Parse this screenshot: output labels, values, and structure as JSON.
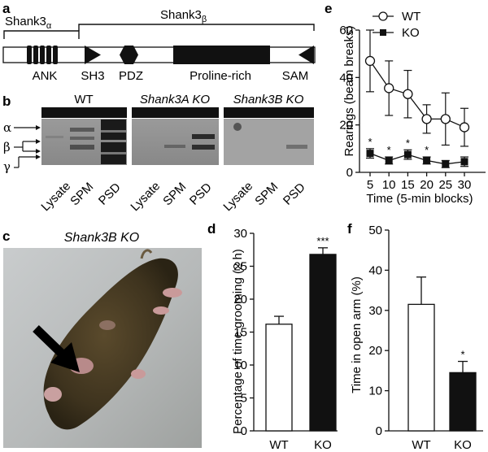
{
  "panel_labels": {
    "a": "a",
    "b": "b",
    "c": "c",
    "d": "d",
    "e": "e",
    "f": "f"
  },
  "panel_a": {
    "alpha_label": "Shank3",
    "alpha_sub": "α",
    "beta_label": "Shank3",
    "beta_sub": "β",
    "domains": [
      "ANK",
      "SH3",
      "PDZ",
      "Proline-rich",
      "SAM"
    ]
  },
  "panel_b": {
    "headers": [
      "WT",
      "Shank3A KO",
      "Shank3B KO"
    ],
    "isoforms": [
      "α",
      "β",
      "γ"
    ],
    "lanes": [
      "Lysate",
      "SPM",
      "PSD",
      "Lysate",
      "SPM",
      "PSD",
      "Lysate",
      "SPM",
      "PSD"
    ]
  },
  "panel_c": {
    "title": "Shank3B KO"
  },
  "colors": {
    "wt_fill": "#ffffff",
    "ko_fill": "#111111",
    "blot_bg": "#8c8c8c"
  },
  "chart_data": [
    {
      "id": "d",
      "type": "bar",
      "categories": [
        "WT",
        "KO"
      ],
      "values": [
        16.2,
        26.8
      ],
      "errors": [
        1.2,
        1.0
      ],
      "significance": [
        "",
        "***"
      ],
      "ylabel": "Percentage of time grooming (2 h)",
      "ylim": [
        0,
        30
      ],
      "yticks": [
        "0",
        "5",
        "10",
        "15",
        "20",
        "25",
        "30"
      ]
    },
    {
      "id": "e",
      "type": "line",
      "x": [
        5,
        10,
        15,
        20,
        25,
        30
      ],
      "xticks": [
        "5",
        "10",
        "15",
        "20",
        "25",
        "30"
      ],
      "xlabel": "Time (5-min blocks)",
      "ylabel": "Rearings (beam breaks)",
      "ylim": [
        0,
        60
      ],
      "yticks": [
        "0",
        "20",
        "40",
        "60"
      ],
      "series": [
        {
          "name": "WT",
          "values": [
            47,
            35.5,
            33,
            22.5,
            22.5,
            19
          ],
          "errors": [
            13,
            11.5,
            10,
            6,
            11,
            8
          ],
          "marker": "open-circle"
        },
        {
          "name": "KO",
          "values": [
            8,
            5,
            7.5,
            5,
            3.5,
            4.5
          ],
          "errors": [
            2,
            1.5,
            2,
            1.5,
            1.5,
            2
          ],
          "marker": "filled-square",
          "significance": [
            "*",
            "*",
            "*",
            "*",
            "",
            ""
          ]
        }
      ]
    },
    {
      "id": "f",
      "type": "bar",
      "categories": [
        "WT",
        "KO"
      ],
      "values": [
        31.5,
        14.5
      ],
      "errors": [
        6.8,
        2.8
      ],
      "significance": [
        "",
        "*"
      ],
      "ylabel": "Time in open arm (%)",
      "ylim": [
        0,
        50
      ],
      "yticks": [
        "0",
        "10",
        "20",
        "30",
        "40",
        "50"
      ]
    }
  ]
}
